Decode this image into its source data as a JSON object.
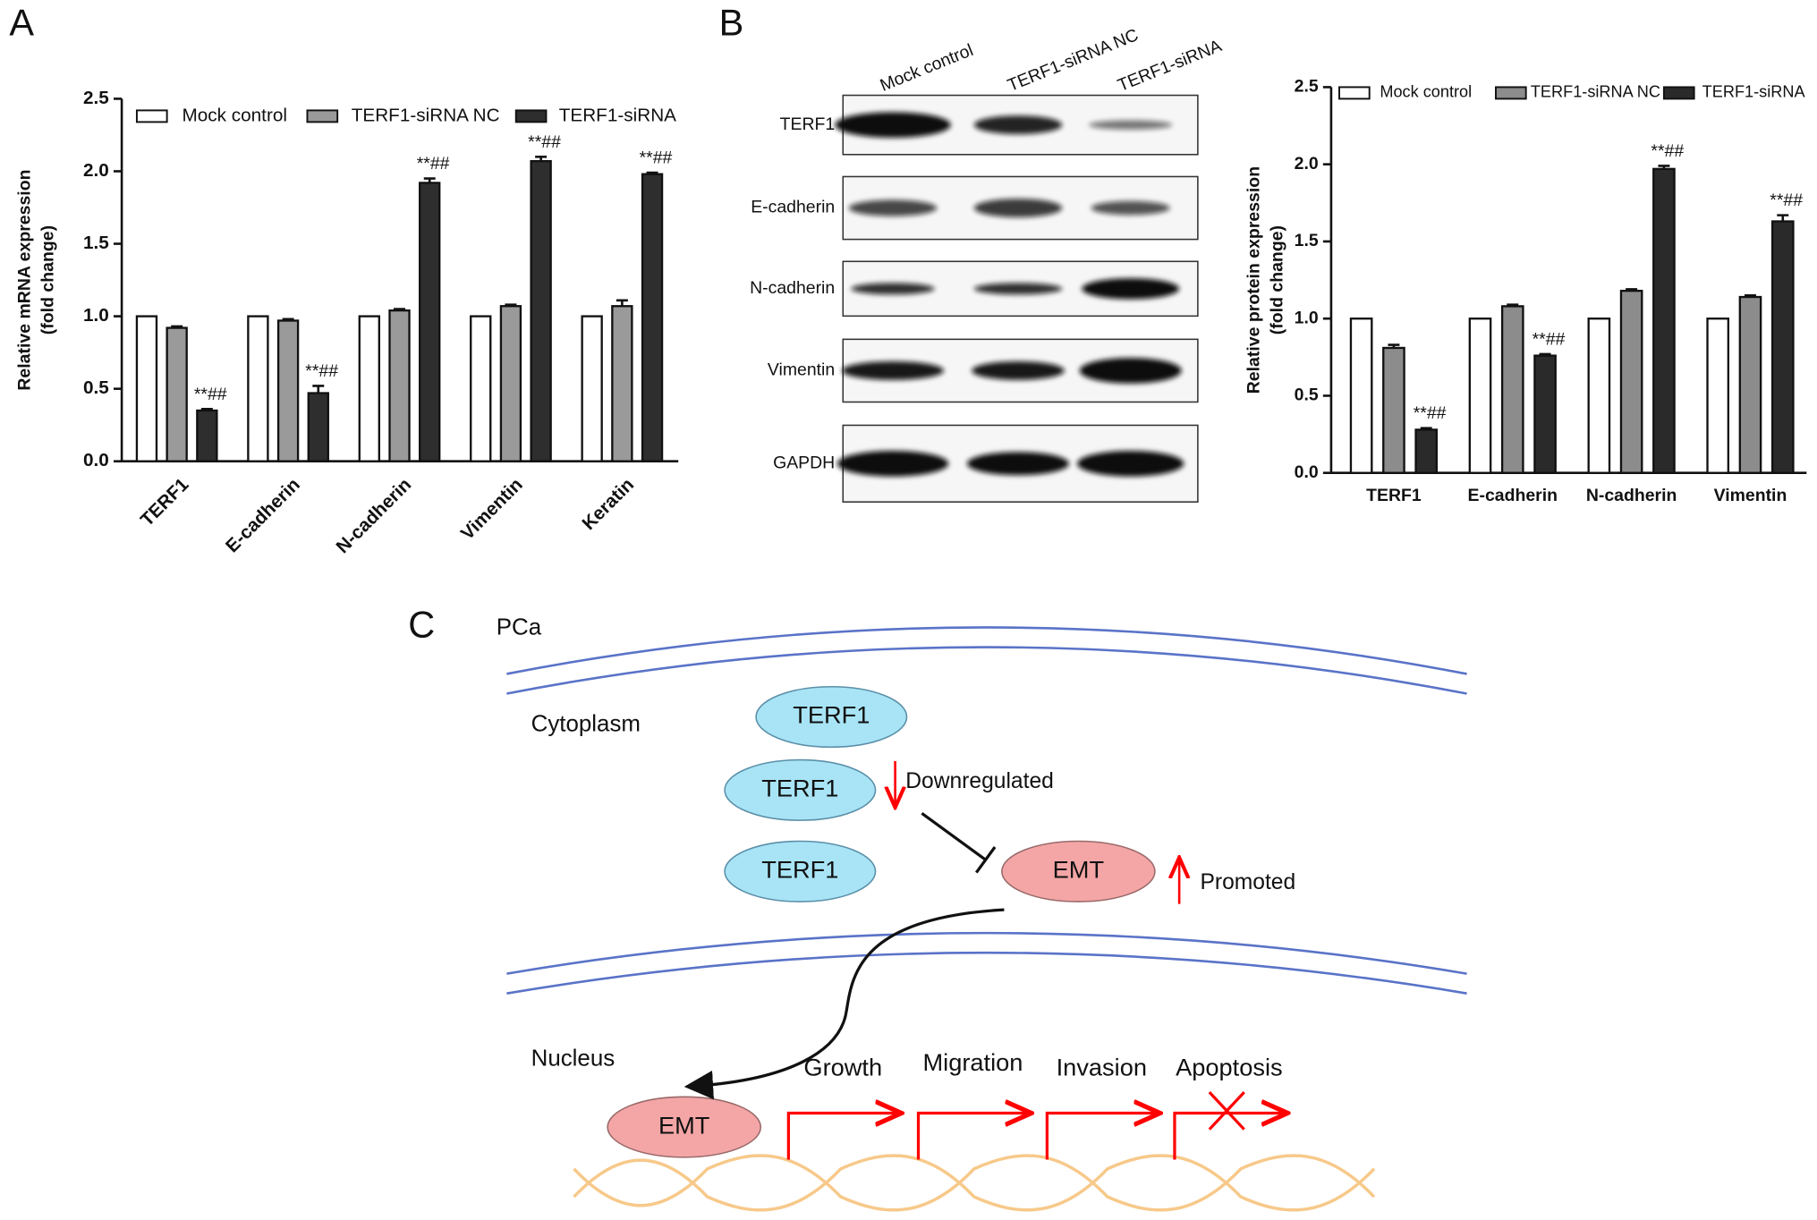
{
  "panel_labels": [
    "A",
    "B",
    "C"
  ],
  "chart_data": [
    {
      "type": "bar",
      "ylabel": [
        "Relative mRNA expression",
        "(fold change)"
      ],
      "categories": [
        "TERF1",
        "E-cadherin",
        "N-cadherin",
        "Vimentin",
        "Keratin"
      ],
      "series": [
        {
          "name": "Mock control",
          "color": "#ffffff",
          "values": [
            1,
            1,
            1,
            1,
            1
          ]
        },
        {
          "name": "TERF1-siRNA NC",
          "color": "#9a9a9a",
          "values": [
            0.92,
            0.97,
            1.04,
            1.07,
            1.07
          ],
          "errors": [
            0.01,
            0.01,
            0.01,
            0.01,
            0.04
          ]
        },
        {
          "name": "TERF1-siRNA",
          "color": "#2e2e2e",
          "values": [
            0.35,
            0.47,
            1.92,
            2.07,
            1.98
          ],
          "errors": [
            0.01,
            0.05,
            0.03,
            0.03,
            0.01
          ],
          "annotations": [
            "**##",
            "**##",
            "**##",
            "**##",
            "**##"
          ]
        }
      ],
      "ylim": [
        0,
        2.5
      ],
      "yticks": [
        {
          "value": 0,
          "label": "0.0"
        },
        0.5,
        {
          "value": 1,
          "label": "1.0"
        },
        1.5,
        {
          "value": 2,
          "label": "2.0"
        },
        2.5
      ],
      "grid": false,
      "legend": "top"
    },
    {
      "type": "bar",
      "ylabel": [
        "Relative protein expression",
        "(fold change)"
      ],
      "categories": [
        "TERF1",
        "E-cadherin",
        "N-cadherin",
        "Vimentin"
      ],
      "series": [
        {
          "name": "Mock control",
          "color": "#ffffff",
          "values": [
            1,
            1,
            1,
            1
          ]
        },
        {
          "name": "TERF1-siRNA NC",
          "color": "#8c8c8c",
          "values": [
            0.81,
            1.08,
            1.18,
            1.14
          ],
          "errors": [
            0.02,
            0.01,
            0.01,
            0.01
          ]
        },
        {
          "name": "TERF1-siRNA",
          "color": "#2a2a2a",
          "values": [
            0.28,
            0.76,
            1.97,
            1.63
          ],
          "errors": [
            0.01,
            0.01,
            0.02,
            0.04
          ],
          "annotations": [
            "**##",
            "**##",
            "**##",
            "**##"
          ]
        }
      ],
      "ylim": [
        0,
        2.5
      ],
      "yticks": [
        {
          "value": 0,
          "label": "0.0"
        },
        0.5,
        {
          "value": 1,
          "label": "1.0"
        },
        1.5,
        {
          "value": 2,
          "label": "2.0"
        },
        2.5
      ],
      "grid": false,
      "legend": "top"
    }
  ],
  "blot": {
    "lanes": [
      "Mock control",
      "TERF1-siRNA NC",
      "TERF1-siRNA"
    ],
    "rows": [
      "TERF1",
      "E-cadherin",
      "N-cadherin",
      "Vimentin",
      "GAPDH"
    ]
  },
  "diagram": {
    "cell": "PCa",
    "cytoplasm": "Cytoplasm",
    "nucleus": "Nucleus",
    "terf1_nodes": [
      "TERF1",
      "TERF1",
      "TERF1"
    ],
    "emt_nodes": [
      "EMT",
      "EMT"
    ],
    "downregulated": "Downregulated",
    "promoted": "Promoted",
    "outcomes": [
      "Growth",
      "Migration",
      "Invasion",
      "Apoptosis"
    ]
  }
}
